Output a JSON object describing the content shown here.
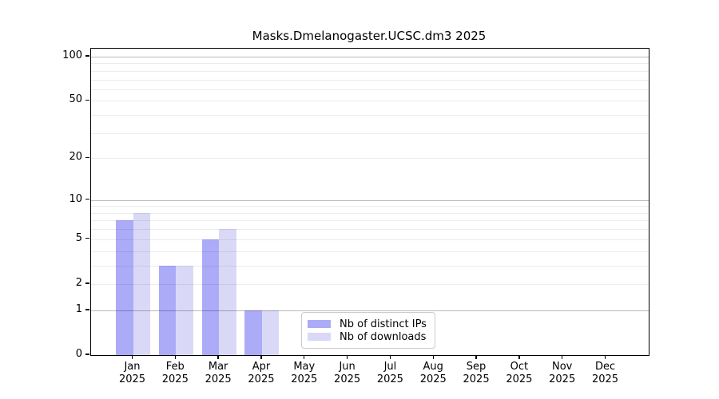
{
  "chart_data": {
    "type": "bar",
    "title": "Masks.Dmelanogaster.UCSC.dm3 2025",
    "categories": [
      "Jan",
      "Feb",
      "Mar",
      "Apr",
      "May",
      "Jun",
      "Jul",
      "Aug",
      "Sep",
      "Oct",
      "Nov",
      "Dec"
    ],
    "x_tick_year": "2025",
    "series": [
      {
        "name": "Nb of distinct IPs",
        "color": "#ababf8",
        "values": [
          7,
          3,
          5,
          1,
          0,
          0,
          0,
          0,
          0,
          0,
          0,
          0
        ]
      },
      {
        "name": "Nb of downloads",
        "color": "#d9d9f7",
        "values": [
          8,
          3,
          6,
          1,
          0,
          0,
          0,
          0,
          0,
          0,
          0,
          0
        ]
      }
    ],
    "y_axis": {
      "scale": "log1p",
      "tick_labels": [
        0,
        1,
        2,
        5,
        10,
        20,
        50,
        100
      ],
      "major_gridlines": [
        1,
        10,
        100
      ],
      "minor_gridlines": [
        2,
        3,
        4,
        5,
        6,
        7,
        8,
        9,
        20,
        30,
        40,
        50,
        60,
        70,
        80,
        90
      ],
      "ylim": [
        0,
        113
      ]
    },
    "legend": {
      "entries": [
        "Nb of distinct IPs",
        "Nb of downloads"
      ],
      "position": "lower-center"
    },
    "grid": true,
    "colors": {
      "distinct_ips": "#ababf8",
      "downloads": "#d9d9f7",
      "legend_border": "#cccccc",
      "grid_major": "#b3b3b3",
      "grid_minor": "#ececec",
      "spine": "#000000"
    }
  }
}
